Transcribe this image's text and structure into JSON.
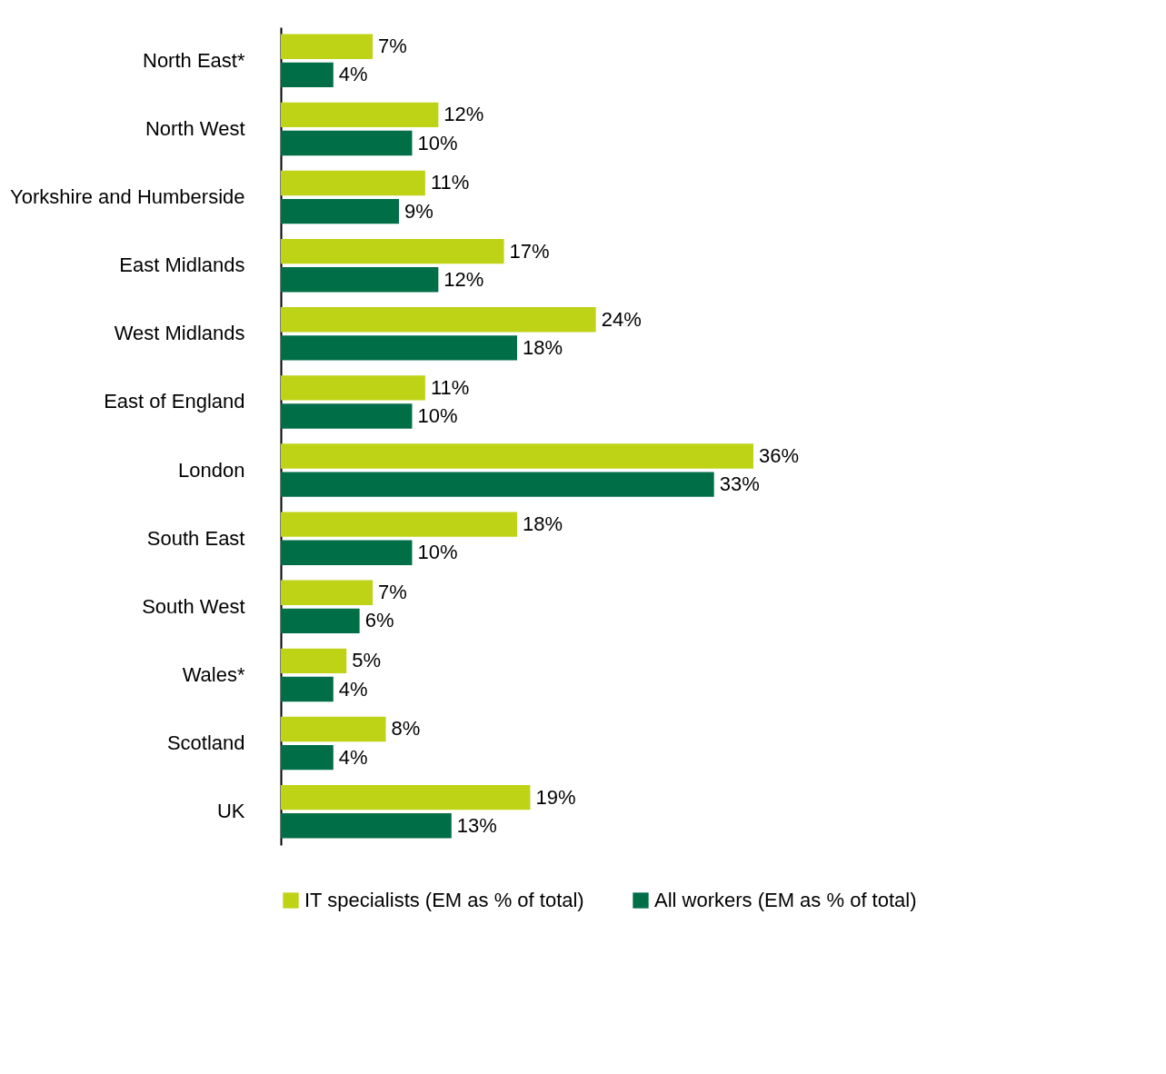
{
  "chart_data": {
    "type": "bar",
    "orientation": "horizontal",
    "legend": "bottom",
    "categories": [
      "North East*",
      "North West",
      "Yorkshire and Humberside",
      "East Midlands",
      "West Midlands",
      "East of England",
      "London",
      "South East",
      "South West",
      "Wales*",
      "Scotland",
      "UK"
    ],
    "series": [
      {
        "name": "IT specialists (EM as % of total)",
        "color": "#bed316",
        "values": [
          7,
          12,
          11,
          17,
          24,
          11,
          36,
          18,
          7,
          5,
          8,
          19
        ],
        "value_labels": [
          "7%",
          "12%",
          "11%",
          "17%",
          "24%",
          "11%",
          "36%",
          "18%",
          "7%",
          "5%",
          "8%",
          "19%"
        ]
      },
      {
        "name": "All workers (EM as % of total)",
        "color": "#006e46",
        "values": [
          4,
          10,
          9,
          12,
          18,
          10,
          33,
          10,
          6,
          4,
          4,
          13
        ],
        "value_labels": [
          "4%",
          "10%",
          "9%",
          "12%",
          "18%",
          "10%",
          "33%",
          "10%",
          "6%",
          "4%",
          "4%",
          "13%"
        ]
      }
    ]
  }
}
